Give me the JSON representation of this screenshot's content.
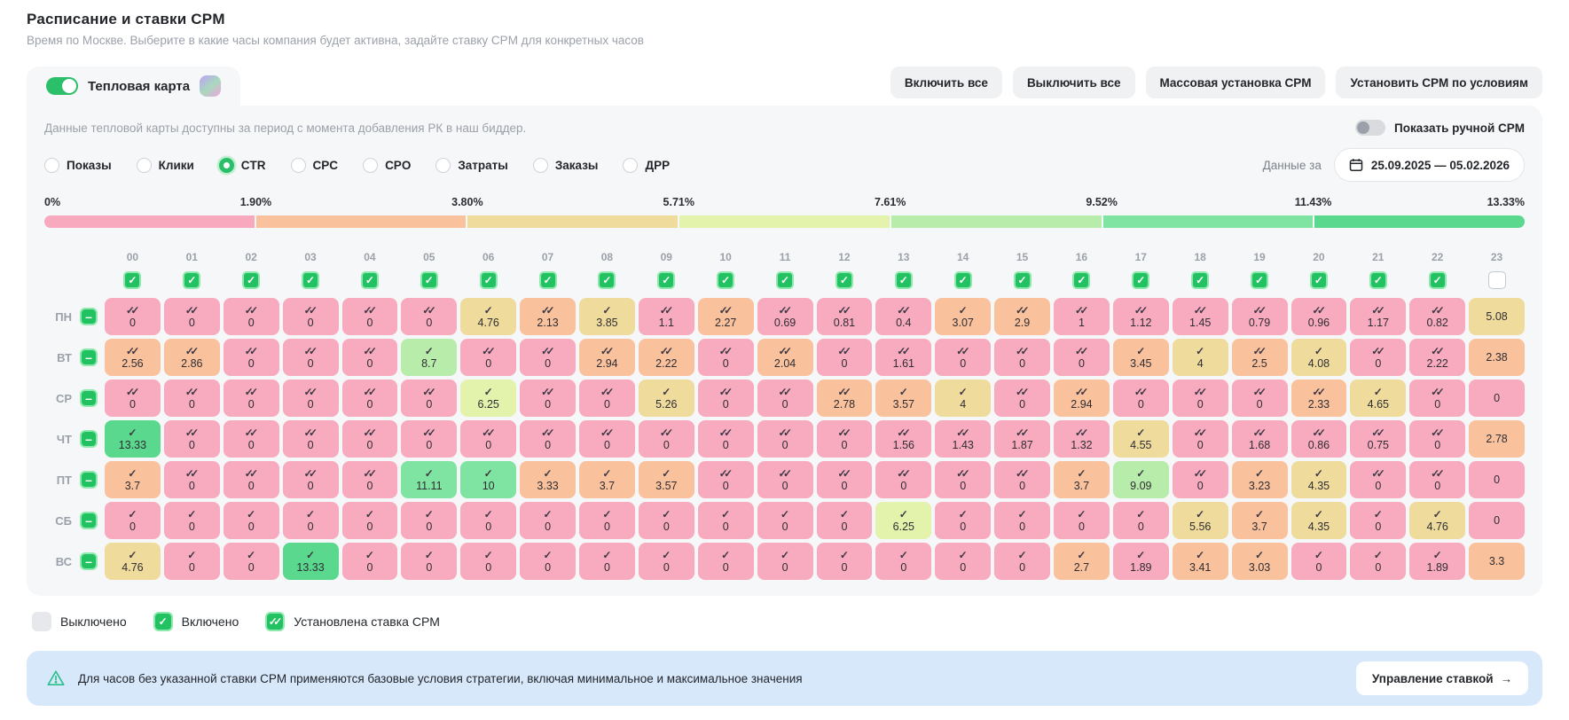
{
  "page": {
    "title": "Расписание и ставки CPM",
    "subtitle": "Время по Москве. Выберите в какие часы компания будет активна, задайте ставку CPM для конкретных часов"
  },
  "heatmap_tab": {
    "label": "Тепловая карта",
    "enabled": true
  },
  "toolbar": {
    "buttons": [
      "Включить все",
      "Выключить все",
      "Массовая установка CPM",
      "Установить CPM по условиям"
    ]
  },
  "panel": {
    "info": "Данные тепловой карты доступны за период с момента добавления РК в наш биддер.",
    "manual_cpm_toggle": {
      "label": "Показать ручной CPM",
      "enabled": false
    },
    "metrics": {
      "options": [
        "Показы",
        "Клики",
        "CTR",
        "CPC",
        "CPO",
        "Затраты",
        "Заказы",
        "ДРР"
      ],
      "selected": "CTR"
    },
    "period": {
      "label": "Данные за",
      "range": "25.09.2025 — 05.02.2026"
    },
    "scale": {
      "labels": [
        "0%",
        "1.90%",
        "3.80%",
        "5.71%",
        "7.61%",
        "9.52%",
        "11.43%",
        "13.33%"
      ],
      "segment_colors": [
        "#f8a9be",
        "#f9c19c",
        "#efdc9d",
        "#e3f3ac",
        "#b7ecaa",
        "#7fe3a1",
        "#5ad98e"
      ]
    },
    "cell_colors": {
      "pink": "#f8abbf",
      "peach": "#f9c19c",
      "tan": "#efdc9d",
      "lime": "#e3f3ac",
      "lgreen": "#b7ecaa",
      "mgreen": "#7fe3a1",
      "sgreen": "#5ad98e",
      "off": "#e7e8ec"
    },
    "hours": [
      "00",
      "01",
      "02",
      "03",
      "04",
      "05",
      "06",
      "07",
      "08",
      "09",
      "10",
      "11",
      "12",
      "13",
      "14",
      "15",
      "16",
      "17",
      "18",
      "19",
      "20",
      "21",
      "22",
      "23"
    ],
    "hours_checked": [
      true,
      true,
      true,
      true,
      true,
      true,
      true,
      true,
      true,
      true,
      true,
      true,
      true,
      true,
      true,
      true,
      true,
      true,
      true,
      true,
      true,
      true,
      true,
      false
    ],
    "grid": [
      {
        "day": "ПН",
        "cells": [
          [
            "0",
            "d",
            "pink"
          ],
          [
            "0",
            "d",
            "pink"
          ],
          [
            "0",
            "d",
            "pink"
          ],
          [
            "0",
            "d",
            "pink"
          ],
          [
            "0",
            "d",
            "pink"
          ],
          [
            "0",
            "d",
            "pink"
          ],
          [
            "4.76",
            "s",
            "tan"
          ],
          [
            "2.13",
            "d",
            "peach"
          ],
          [
            "3.85",
            "s",
            "tan"
          ],
          [
            "1.1",
            "d",
            "pink"
          ],
          [
            "2.27",
            "d",
            "peach"
          ],
          [
            "0.69",
            "d",
            "pink"
          ],
          [
            "0.81",
            "d",
            "pink"
          ],
          [
            "0.4",
            "d",
            "pink"
          ],
          [
            "3.07",
            "s",
            "peach"
          ],
          [
            "2.9",
            "d",
            "peach"
          ],
          [
            "1",
            "d",
            "pink"
          ],
          [
            "1.12",
            "d",
            "pink"
          ],
          [
            "1.45",
            "d",
            "pink"
          ],
          [
            "0.79",
            "d",
            "pink"
          ],
          [
            "0.96",
            "d",
            "pink"
          ],
          [
            "1.17",
            "d",
            "pink"
          ],
          [
            "0.82",
            "d",
            "pink"
          ]
        ],
        "hour23": [
          "5.08",
          "tan"
        ]
      },
      {
        "day": "ВТ",
        "cells": [
          [
            "2.56",
            "d",
            "peach"
          ],
          [
            "2.86",
            "d",
            "peach"
          ],
          [
            "0",
            "d",
            "pink"
          ],
          [
            "0",
            "d",
            "pink"
          ],
          [
            "0",
            "d",
            "pink"
          ],
          [
            "8.7",
            "s",
            "lgreen"
          ],
          [
            "0",
            "d",
            "pink"
          ],
          [
            "0",
            "d",
            "pink"
          ],
          [
            "2.94",
            "d",
            "peach"
          ],
          [
            "2.22",
            "d",
            "peach"
          ],
          [
            "0",
            "d",
            "pink"
          ],
          [
            "2.04",
            "d",
            "peach"
          ],
          [
            "0",
            "d",
            "pink"
          ],
          [
            "1.61",
            "d",
            "pink"
          ],
          [
            "0",
            "d",
            "pink"
          ],
          [
            "0",
            "d",
            "pink"
          ],
          [
            "0",
            "d",
            "pink"
          ],
          [
            "3.45",
            "s",
            "peach"
          ],
          [
            "4",
            "s",
            "tan"
          ],
          [
            "2.5",
            "d",
            "peach"
          ],
          [
            "4.08",
            "s",
            "tan"
          ],
          [
            "0",
            "d",
            "pink"
          ],
          [
            "2.22",
            "d",
            "pink"
          ]
        ],
        "hour23": [
          "2.38",
          "peach"
        ]
      },
      {
        "day": "СР",
        "cells": [
          [
            "0",
            "d",
            "pink"
          ],
          [
            "0",
            "d",
            "pink"
          ],
          [
            "0",
            "d",
            "pink"
          ],
          [
            "0",
            "d",
            "pink"
          ],
          [
            "0",
            "d",
            "pink"
          ],
          [
            "0",
            "d",
            "pink"
          ],
          [
            "6.25",
            "s",
            "lime"
          ],
          [
            "0",
            "d",
            "pink"
          ],
          [
            "0",
            "d",
            "pink"
          ],
          [
            "5.26",
            "s",
            "tan"
          ],
          [
            "0",
            "d",
            "pink"
          ],
          [
            "0",
            "d",
            "pink"
          ],
          [
            "2.78",
            "d",
            "peach"
          ],
          [
            "3.57",
            "s",
            "peach"
          ],
          [
            "4",
            "s",
            "tan"
          ],
          [
            "0",
            "d",
            "pink"
          ],
          [
            "2.94",
            "d",
            "peach"
          ],
          [
            "0",
            "d",
            "pink"
          ],
          [
            "0",
            "d",
            "pink"
          ],
          [
            "0",
            "d",
            "pink"
          ],
          [
            "2.33",
            "d",
            "peach"
          ],
          [
            "4.65",
            "s",
            "tan"
          ],
          [
            "0",
            "d",
            "pink"
          ]
        ],
        "hour23": [
          "0",
          "pink"
        ]
      },
      {
        "day": "ЧТ",
        "cells": [
          [
            "13.33",
            "s",
            "sgreen"
          ],
          [
            "0",
            "d",
            "pink"
          ],
          [
            "0",
            "d",
            "pink"
          ],
          [
            "0",
            "d",
            "pink"
          ],
          [
            "0",
            "d",
            "pink"
          ],
          [
            "0",
            "d",
            "pink"
          ],
          [
            "0",
            "d",
            "pink"
          ],
          [
            "0",
            "d",
            "pink"
          ],
          [
            "0",
            "d",
            "pink"
          ],
          [
            "0",
            "d",
            "pink"
          ],
          [
            "0",
            "d",
            "pink"
          ],
          [
            "0",
            "d",
            "pink"
          ],
          [
            "0",
            "d",
            "pink"
          ],
          [
            "1.56",
            "d",
            "pink"
          ],
          [
            "1.43",
            "d",
            "pink"
          ],
          [
            "1.87",
            "d",
            "pink"
          ],
          [
            "1.32",
            "d",
            "pink"
          ],
          [
            "4.55",
            "s",
            "tan"
          ],
          [
            "0",
            "d",
            "pink"
          ],
          [
            "1.68",
            "d",
            "pink"
          ],
          [
            "0.86",
            "d",
            "pink"
          ],
          [
            "0.75",
            "d",
            "pink"
          ],
          [
            "0",
            "d",
            "pink"
          ]
        ],
        "hour23": [
          "2.78",
          "peach"
        ]
      },
      {
        "day": "ПТ",
        "cells": [
          [
            "3.7",
            "s",
            "peach"
          ],
          [
            "0",
            "d",
            "pink"
          ],
          [
            "0",
            "d",
            "pink"
          ],
          [
            "0",
            "d",
            "pink"
          ],
          [
            "0",
            "d",
            "pink"
          ],
          [
            "11.11",
            "s",
            "mgreen"
          ],
          [
            "10",
            "s",
            "mgreen"
          ],
          [
            "3.33",
            "s",
            "peach"
          ],
          [
            "3.7",
            "s",
            "peach"
          ],
          [
            "3.57",
            "s",
            "peach"
          ],
          [
            "0",
            "d",
            "pink"
          ],
          [
            "0",
            "d",
            "pink"
          ],
          [
            "0",
            "d",
            "pink"
          ],
          [
            "0",
            "d",
            "pink"
          ],
          [
            "0",
            "d",
            "pink"
          ],
          [
            "0",
            "d",
            "pink"
          ],
          [
            "3.7",
            "s",
            "peach"
          ],
          [
            "9.09",
            "s",
            "lgreen"
          ],
          [
            "0",
            "d",
            "pink"
          ],
          [
            "3.23",
            "s",
            "peach"
          ],
          [
            "4.35",
            "s",
            "tan"
          ],
          [
            "0",
            "d",
            "pink"
          ],
          [
            "0",
            "d",
            "pink"
          ]
        ],
        "hour23": [
          "0",
          "pink"
        ]
      },
      {
        "day": "СБ",
        "cells": [
          [
            "0",
            "s",
            "pink"
          ],
          [
            "0",
            "s",
            "pink"
          ],
          [
            "0",
            "s",
            "pink"
          ],
          [
            "0",
            "s",
            "pink"
          ],
          [
            "0",
            "s",
            "pink"
          ],
          [
            "0",
            "s",
            "pink"
          ],
          [
            "0",
            "s",
            "pink"
          ],
          [
            "0",
            "s",
            "pink"
          ],
          [
            "0",
            "s",
            "pink"
          ],
          [
            "0",
            "s",
            "pink"
          ],
          [
            "0",
            "s",
            "pink"
          ],
          [
            "0",
            "s",
            "pink"
          ],
          [
            "0",
            "s",
            "pink"
          ],
          [
            "6.25",
            "s",
            "lime"
          ],
          [
            "0",
            "s",
            "pink"
          ],
          [
            "0",
            "s",
            "pink"
          ],
          [
            "0",
            "s",
            "pink"
          ],
          [
            "0",
            "s",
            "pink"
          ],
          [
            "5.56",
            "s",
            "tan"
          ],
          [
            "3.7",
            "s",
            "peach"
          ],
          [
            "4.35",
            "s",
            "tan"
          ],
          [
            "0",
            "s",
            "pink"
          ],
          [
            "4.76",
            "s",
            "tan"
          ]
        ],
        "hour23": [
          "0",
          "pink"
        ]
      },
      {
        "day": "ВС",
        "cells": [
          [
            "4.76",
            "s",
            "tan"
          ],
          [
            "0",
            "s",
            "pink"
          ],
          [
            "0",
            "s",
            "pink"
          ],
          [
            "13.33",
            "s",
            "sgreen"
          ],
          [
            "0",
            "s",
            "pink"
          ],
          [
            "0",
            "s",
            "pink"
          ],
          [
            "0",
            "s",
            "pink"
          ],
          [
            "0",
            "s",
            "pink"
          ],
          [
            "0",
            "s",
            "pink"
          ],
          [
            "0",
            "s",
            "pink"
          ],
          [
            "0",
            "s",
            "pink"
          ],
          [
            "0",
            "s",
            "pink"
          ],
          [
            "0",
            "s",
            "pink"
          ],
          [
            "0",
            "s",
            "pink"
          ],
          [
            "0",
            "s",
            "pink"
          ],
          [
            "0",
            "s",
            "pink"
          ],
          [
            "2.7",
            "s",
            "peach"
          ],
          [
            "1.89",
            "s",
            "pink"
          ],
          [
            "3.41",
            "s",
            "peach"
          ],
          [
            "3.03",
            "s",
            "peach"
          ],
          [
            "0",
            "s",
            "pink"
          ],
          [
            "0",
            "s",
            "pink"
          ],
          [
            "1.89",
            "s",
            "pink"
          ]
        ],
        "hour23": [
          "3.3",
          "peach"
        ]
      }
    ]
  },
  "legend": [
    {
      "type": "off",
      "label": "Выключено"
    },
    {
      "type": "on",
      "label": "Включено"
    },
    {
      "type": "cpm",
      "label": "Установлена ставка CPM"
    }
  ],
  "banner": {
    "text": "Для часов без указанной ставки CPM применяются базовые условия стратегии, включая минимальное и максимальное значения",
    "button_label": "Управление ставкой",
    "button_arrow": "→"
  }
}
